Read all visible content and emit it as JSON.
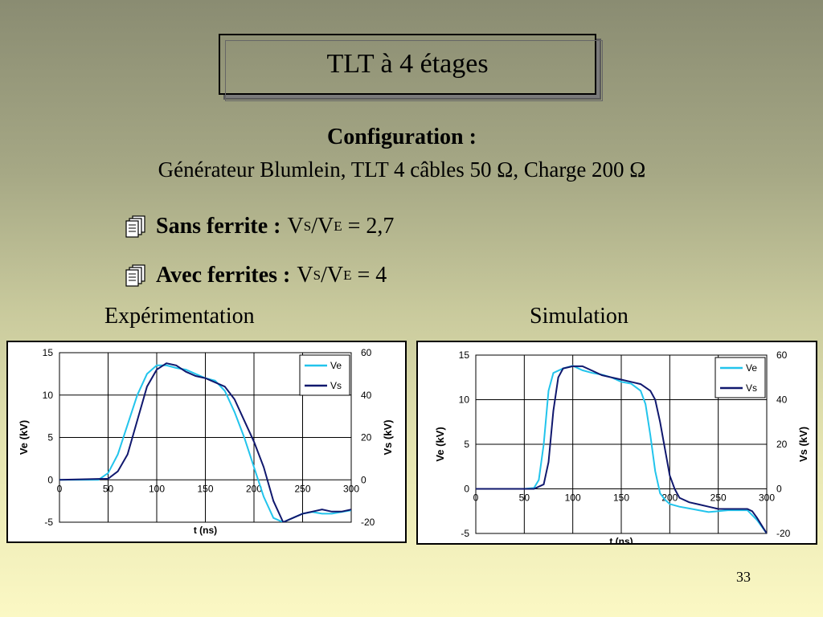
{
  "slide": {
    "title": "TLT à 4 étages",
    "config_heading": "Configuration :",
    "config_text": "Générateur Blumlein, TLT 4 câbles 50 Ω, Charge 200 Ω",
    "bullets": [
      {
        "icon": "documents-icon",
        "label": "Sans ferrite :",
        "v": "V",
        "sub1": "S",
        "slash": "/V",
        "sub2": "E",
        "value": " = 2,7"
      },
      {
        "icon": "documents-icon",
        "label": "Avec ferrites :",
        "v": "V",
        "sub1": "S",
        "slash": "/V",
        "sub2": "E",
        "value": " = 4"
      }
    ],
    "left_heading": "Expérimentation",
    "right_heading": "Simulation",
    "page_number": "33"
  },
  "chart_data": [
    {
      "type": "line",
      "title": "",
      "xlabel": "t (ns)",
      "ylabel": "Ve (kV)",
      "y2label": "Vs (kV)",
      "xlim": [
        0,
        300
      ],
      "ylim": [
        -5,
        15
      ],
      "y2lim": [
        -20,
        60
      ],
      "xticks": [
        "0",
        "50",
        "100",
        "150",
        "200",
        "250",
        "300"
      ],
      "yticks": [
        "-5",
        "0",
        "5",
        "10",
        "15"
      ],
      "y2ticks": [
        "-20",
        "0",
        "20",
        "40",
        "60"
      ],
      "grid": true,
      "legend": "top-right",
      "series": [
        {
          "name": "Ve",
          "axis": "left",
          "color": "#22c4ec",
          "x": [
            0,
            40,
            50,
            60,
            70,
            80,
            90,
            100,
            110,
            120,
            130,
            140,
            150,
            160,
            170,
            180,
            190,
            200,
            210,
            220,
            230,
            240,
            250,
            260,
            270,
            280,
            290,
            300
          ],
          "y": [
            0,
            0,
            0.8,
            3,
            6.5,
            10,
            12.5,
            13.5,
            13.5,
            13.2,
            13,
            12.5,
            12,
            11.7,
            10.5,
            8,
            5,
            1.5,
            -2,
            -4.5,
            -5,
            -4.5,
            -4,
            -3.8,
            -4,
            -4,
            -3.8,
            -3.6
          ]
        },
        {
          "name": "Vs",
          "axis": "right",
          "color": "#10186e",
          "x": [
            0,
            50,
            60,
            70,
            80,
            90,
            100,
            110,
            120,
            130,
            140,
            150,
            160,
            170,
            180,
            190,
            200,
            210,
            220,
            230,
            240,
            250,
            260,
            270,
            280,
            290,
            300
          ],
          "y": [
            0,
            0.5,
            4,
            12,
            28,
            44,
            52,
            55,
            54,
            51,
            49,
            48,
            46,
            44,
            38,
            28,
            18,
            6,
            -10,
            -20,
            -18,
            -16,
            -15,
            -14,
            -15,
            -15,
            -14
          ]
        }
      ]
    },
    {
      "type": "line",
      "title": "",
      "xlabel": "t (ns)",
      "ylabel": "Ve (kV)",
      "y2label": "Vs (kV)",
      "xlim": [
        0,
        300
      ],
      "ylim": [
        -5,
        15
      ],
      "y2lim": [
        -20,
        60
      ],
      "xticks": [
        "0",
        "50",
        "100",
        "150",
        "200",
        "250",
        "300"
      ],
      "yticks": [
        "-5",
        "0",
        "5",
        "10",
        "15"
      ],
      "y2ticks": [
        "-20",
        "0",
        "20",
        "40",
        "60"
      ],
      "grid": true,
      "legend": "top-right",
      "series": [
        {
          "name": "Ve",
          "axis": "left",
          "color": "#22c4ec",
          "x": [
            0,
            50,
            60,
            65,
            70,
            75,
            80,
            90,
            100,
            110,
            120,
            130,
            140,
            150,
            160,
            170,
            175,
            180,
            185,
            190,
            195,
            200,
            210,
            220,
            230,
            240,
            250,
            260,
            270,
            280,
            290,
            300
          ],
          "y": [
            0,
            0,
            0.1,
            1,
            5,
            11,
            13,
            13.5,
            13.8,
            13.3,
            13,
            12.8,
            12.5,
            12,
            11.8,
            11,
            9.5,
            6,
            2,
            -0.5,
            -1.2,
            -1.7,
            -2,
            -2.2,
            -2.4,
            -2.6,
            -2.5,
            -2.4,
            -2.4,
            -2.4,
            -3.5,
            -5
          ]
        },
        {
          "name": "Vs",
          "axis": "right",
          "color": "#10186e",
          "x": [
            0,
            60,
            70,
            75,
            80,
            85,
            90,
            100,
            110,
            120,
            130,
            140,
            150,
            160,
            170,
            180,
            185,
            190,
            195,
            200,
            205,
            210,
            220,
            230,
            240,
            250,
            260,
            270,
            280,
            285,
            290,
            300
          ],
          "y": [
            0,
            0,
            2,
            12,
            35,
            50,
            54,
            55,
            55,
            53,
            51,
            50,
            49,
            48,
            47,
            44,
            40,
            30,
            18,
            6,
            0,
            -4,
            -6,
            -7,
            -8,
            -9,
            -9,
            -9,
            -9,
            -10,
            -13,
            -20
          ]
        }
      ]
    }
  ]
}
